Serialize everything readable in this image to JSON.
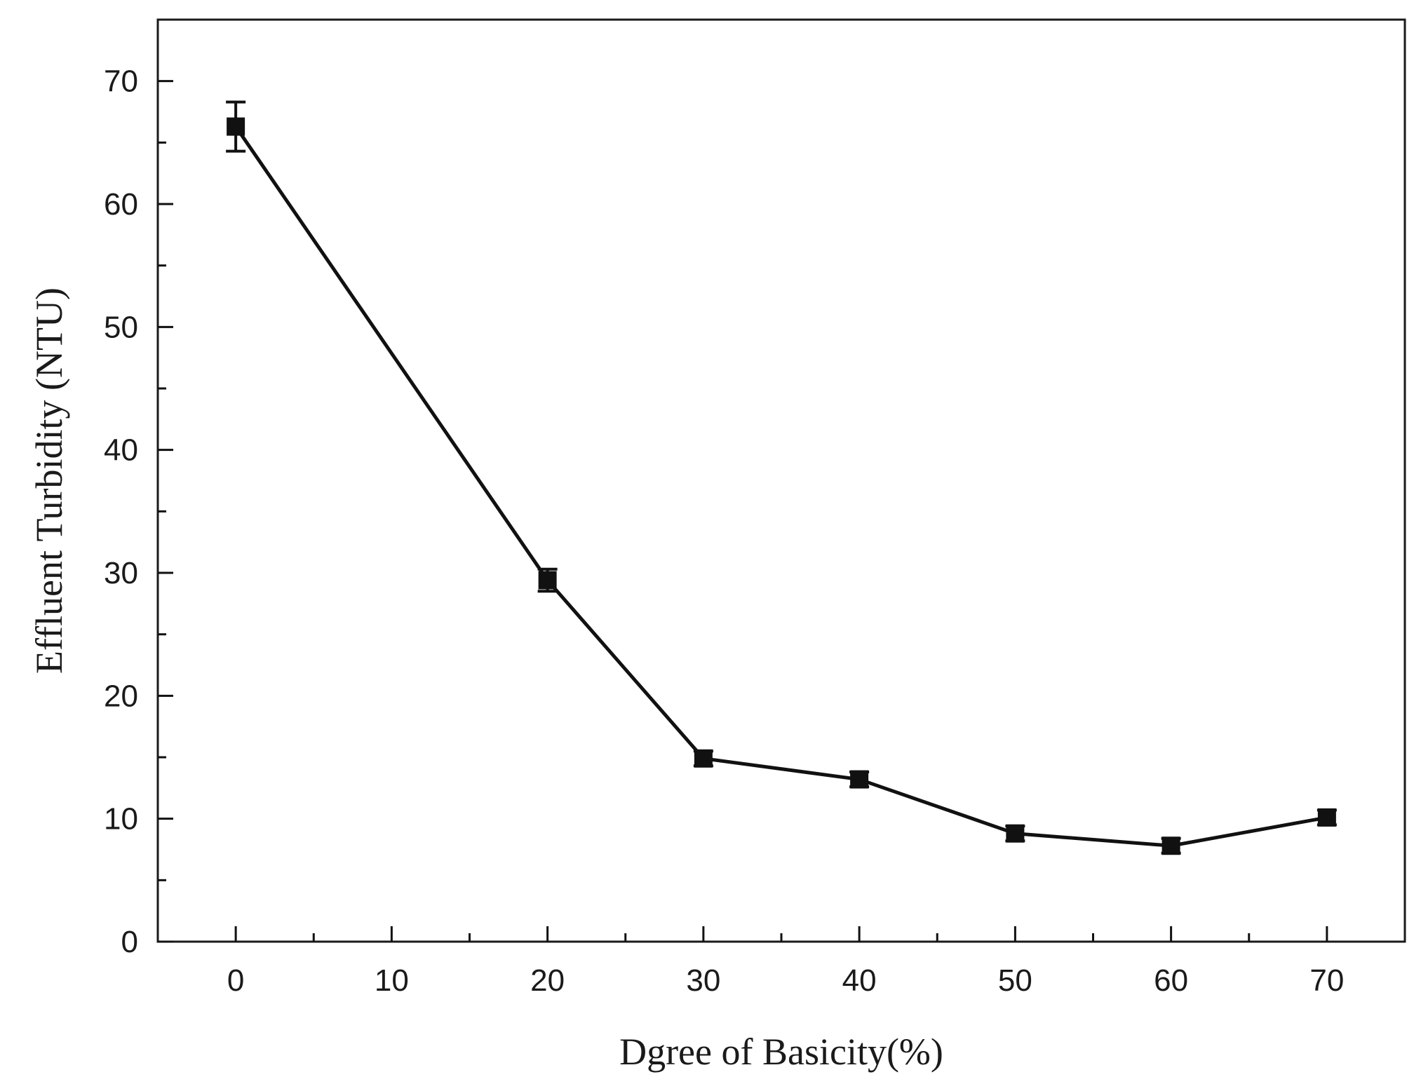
{
  "chart_data": {
    "type": "line",
    "title": "",
    "xlabel": "Dgree of Basicity(%)",
    "ylabel": "Effluent Turbidity (NTU)",
    "xlim": [
      -5,
      75
    ],
    "ylim": [
      0,
      75
    ],
    "xticks": [
      0,
      10,
      20,
      30,
      40,
      50,
      60,
      70
    ],
    "yticks": [
      0,
      10,
      20,
      30,
      40,
      50,
      60,
      70
    ],
    "grid": false,
    "marker": "square",
    "line_color": "#111111",
    "series": [
      {
        "name": "Effluent Turbidity",
        "x": [
          0,
          20,
          30,
          40,
          50,
          60,
          70
        ],
        "y": [
          66.3,
          29.4,
          14.9,
          13.2,
          8.8,
          7.8,
          10.1
        ],
        "error": [
          2.0,
          0.9,
          0.6,
          0.6,
          0.6,
          0.6,
          0.6
        ]
      }
    ]
  }
}
